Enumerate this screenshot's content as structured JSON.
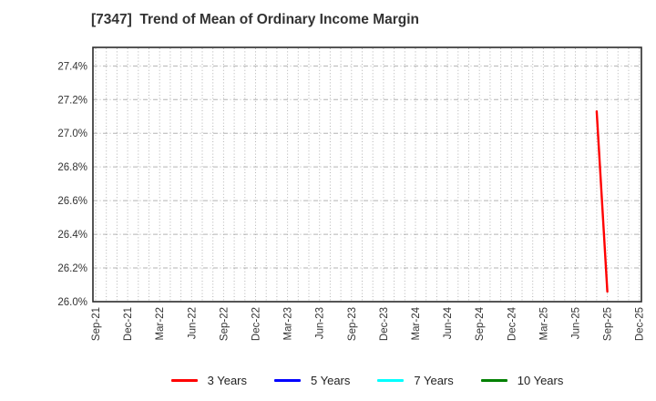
{
  "page": {
    "background": "#ffffff"
  },
  "chart_data": {
    "type": "line",
    "title": "[7347]  Trend of Mean of Ordinary Income Margin",
    "title_color": "#333333",
    "xlabel": "",
    "ylabel": "",
    "x_tick_labels": [
      "Sep-21",
      "Dec-21",
      "Mar-22",
      "Jun-22",
      "Sep-22",
      "Dec-22",
      "Mar-23",
      "Jun-23",
      "Sep-23",
      "Dec-23",
      "Mar-24",
      "Jun-24",
      "Sep-24",
      "Dec-24",
      "Mar-25",
      "Jun-25",
      "Sep-25",
      "Dec-25"
    ],
    "x_range_months": [
      "Sep-21",
      "Dec-25"
    ],
    "yticks": [
      26.0,
      26.2,
      26.4,
      26.6,
      26.8,
      27.0,
      27.2,
      27.4
    ],
    "ytick_suffix": "%",
    "ylim": [
      26.0,
      27.51
    ],
    "grid": {
      "horizontal_style": "dash-dot",
      "vertical_style": "dotted-monthly",
      "color": "#b3b3b3"
    },
    "axis_frame_color": "#2b2b2b",
    "tick_label_color": "#333333",
    "legend_position": "bottom-center",
    "series": [
      {
        "name": "3 Years",
        "color": "#ff0000",
        "points": [
          {
            "x": "Aug-25",
            "y": 27.13
          },
          {
            "x": "Sep-25",
            "y": 26.06
          }
        ]
      },
      {
        "name": "5 Years",
        "color": "#0000ff",
        "points": []
      },
      {
        "name": "7 Years",
        "color": "#00ffff",
        "points": []
      },
      {
        "name": "10 Years",
        "color": "#008000",
        "points": []
      }
    ]
  }
}
